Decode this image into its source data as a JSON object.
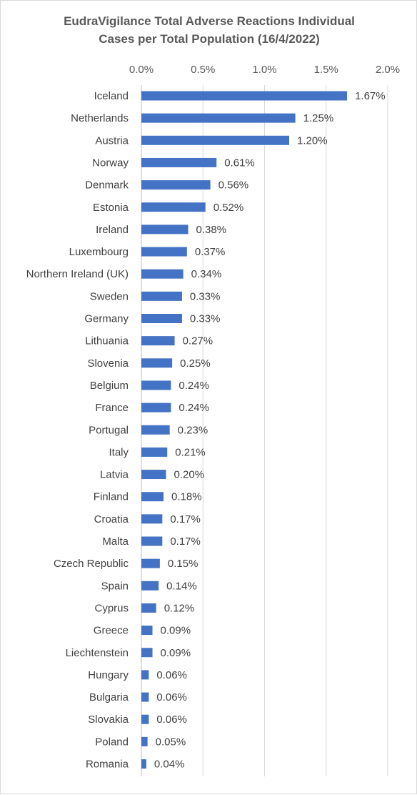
{
  "chart_data": {
    "type": "bar",
    "orientation": "horizontal",
    "title_lines": [
      "EudraVigilance Total Adverse Reactions Individual",
      "Cases per Total Population (16/4/2022)"
    ],
    "xlim": [
      0,
      0.02
    ],
    "x_ticks": [
      {
        "value": 0.0,
        "label": "0.0%"
      },
      {
        "value": 0.005,
        "label": "0.5%"
      },
      {
        "value": 0.01,
        "label": "1.0%"
      },
      {
        "value": 0.015,
        "label": "1.5%"
      },
      {
        "value": 0.02,
        "label": "2.0%"
      }
    ],
    "x_axis_position": "top",
    "grid": true,
    "legend": "none",
    "bar_color": "#4472c4",
    "categories": [
      "Iceland",
      "Netherlands",
      "Austria",
      "Norway",
      "Denmark",
      "Estonia",
      "Ireland",
      "Luxembourg",
      "Northern Ireland (UK)",
      "Sweden",
      "Germany",
      "Lithuania",
      "Slovenia",
      "Belgium",
      "France",
      "Portugal",
      "Italy",
      "Latvia",
      "Finland",
      "Croatia",
      "Malta",
      "Czech Republic",
      "Spain",
      "Cyprus",
      "Greece",
      "Liechtenstein",
      "Hungary",
      "Bulgaria",
      "Slovakia",
      "Poland",
      "Romania"
    ],
    "values": [
      0.0167,
      0.0125,
      0.012,
      0.0061,
      0.0056,
      0.0052,
      0.0038,
      0.0037,
      0.0034,
      0.0033,
      0.0033,
      0.0027,
      0.0025,
      0.0024,
      0.0024,
      0.0023,
      0.0021,
      0.002,
      0.0018,
      0.0017,
      0.0017,
      0.0015,
      0.0014,
      0.0012,
      0.0009,
      0.0009,
      0.0006,
      0.0006,
      0.0006,
      0.0005,
      0.0004
    ],
    "data_labels": [
      "1.67%",
      "1.25%",
      "1.20%",
      "0.61%",
      "0.56%",
      "0.52%",
      "0.38%",
      "0.37%",
      "0.34%",
      "0.33%",
      "0.33%",
      "0.27%",
      "0.25%",
      "0.24%",
      "0.24%",
      "0.23%",
      "0.21%",
      "0.20%",
      "0.18%",
      "0.17%",
      "0.17%",
      "0.15%",
      "0.14%",
      "0.12%",
      "0.09%",
      "0.09%",
      "0.06%",
      "0.06%",
      "0.06%",
      "0.05%",
      "0.04%"
    ]
  }
}
